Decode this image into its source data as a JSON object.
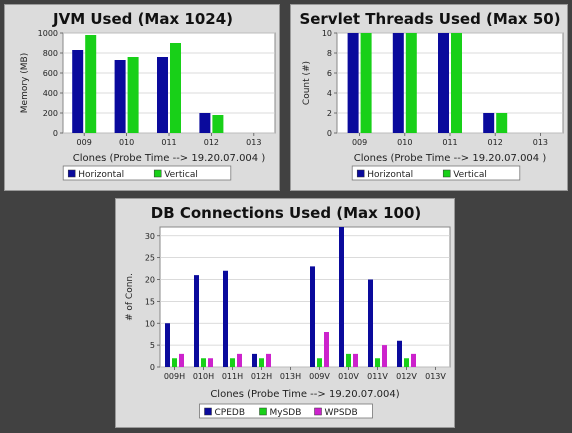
{
  "chart_data": [
    {
      "type": "bar",
      "title": "JVM Used (Max 1024)",
      "xlabel": "Clones  (Probe Time --> 19.20.07.004 )",
      "ylabel": "Memory (MB)",
      "ylim": [
        0,
        1000
      ],
      "yticks": [
        0,
        200,
        400,
        600,
        800,
        1000
      ],
      "categories": [
        "009",
        "010",
        "011",
        "012",
        "013"
      ],
      "series": [
        {
          "name": "Horizontal",
          "color": "#0a0a9c",
          "values": [
            830,
            730,
            760,
            200,
            0
          ]
        },
        {
          "name": "Vertical",
          "color": "#18d018",
          "values": [
            980,
            760,
            900,
            180,
            0
          ]
        }
      ],
      "legend": "bottom",
      "grid": true
    },
    {
      "type": "bar",
      "title": "Servlet Threads Used (Max 50)",
      "xlabel": "Clones  (Probe Time --> 19.20.07.004 )",
      "ylabel": "Count (#)",
      "ylim": [
        0,
        10
      ],
      "yticks": [
        0,
        2,
        4,
        6,
        8,
        10
      ],
      "categories": [
        "009",
        "010",
        "011",
        "012",
        "013"
      ],
      "series": [
        {
          "name": "Horizontal",
          "color": "#0a0a9c",
          "values": [
            10,
            10,
            10,
            2,
            0
          ]
        },
        {
          "name": "Vertical",
          "color": "#18d018",
          "values": [
            10,
            10,
            10,
            2,
            0
          ]
        }
      ],
      "legend": "bottom",
      "grid": true
    },
    {
      "type": "bar",
      "title": "DB Connections Used (Max 100)",
      "xlabel": "Clones  (Probe Time --> 19.20.07.004)",
      "ylabel": "# of Conn.",
      "ylim": [
        0,
        32
      ],
      "yticks": [
        0,
        5,
        10,
        15,
        20,
        25,
        30
      ],
      "categories": [
        "009H",
        "010H",
        "011H",
        "012H",
        "013H",
        "009V",
        "010V",
        "011V",
        "012V",
        "013V"
      ],
      "series": [
        {
          "name": "CPEDB",
          "color": "#0a0a9c",
          "values": [
            10,
            21,
            22,
            3,
            0,
            23,
            32,
            20,
            6,
            0
          ]
        },
        {
          "name": "MySDB",
          "color": "#18d018",
          "values": [
            2,
            2,
            2,
            2,
            0,
            2,
            3,
            2,
            2,
            0
          ]
        },
        {
          "name": "WPSDB",
          "color": "#cc22cc",
          "values": [
            3,
            2,
            3,
            3,
            0,
            8,
            3,
            5,
            3,
            0
          ]
        }
      ],
      "legend": "bottom",
      "grid": true
    }
  ]
}
